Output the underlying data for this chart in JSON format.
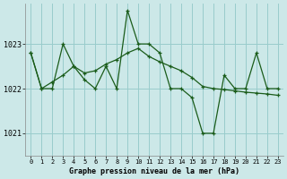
{
  "title": "Graphe pression niveau de la mer (hPa)",
  "background_color": "#cce8e8",
  "grid_color": "#99cccc",
  "line_color": "#1a5c1a",
  "xlim": [
    -0.5,
    23.5
  ],
  "ylim": [
    1020.5,
    1023.9
  ],
  "yticks": [
    1021,
    1022,
    1023
  ],
  "xticks": [
    0,
    1,
    2,
    3,
    4,
    5,
    6,
    7,
    8,
    9,
    10,
    11,
    12,
    13,
    14,
    15,
    16,
    17,
    18,
    19,
    20,
    21,
    22,
    23
  ],
  "series1_x": [
    0,
    1,
    2,
    3,
    4,
    5,
    6,
    7,
    8,
    9,
    10,
    11,
    12,
    13,
    14,
    15,
    16,
    17,
    18,
    19,
    20,
    21,
    22,
    23
  ],
  "series1_y": [
    1022.8,
    1022.0,
    1022.0,
    1023.0,
    1022.5,
    1022.2,
    1022.0,
    1022.5,
    1022.0,
    1023.75,
    1023.0,
    1023.0,
    1022.8,
    1022.0,
    1022.0,
    1021.8,
    1021.0,
    1021.0,
    1022.3,
    1022.0,
    1022.0,
    1022.8,
    1022.0,
    1022.0
  ],
  "series2_x": [
    0,
    1,
    2,
    3,
    4,
    5,
    6,
    7,
    8,
    9,
    10,
    11,
    12,
    13,
    14,
    15,
    16,
    17,
    18,
    19,
    20,
    21,
    22,
    23
  ],
  "series2_y": [
    1022.8,
    1022.0,
    1022.15,
    1022.3,
    1022.5,
    1022.35,
    1022.4,
    1022.55,
    1022.65,
    1022.8,
    1022.9,
    1022.72,
    1022.6,
    1022.5,
    1022.4,
    1022.25,
    1022.05,
    1022.0,
    1021.98,
    1021.95,
    1021.92,
    1021.9,
    1021.88,
    1021.85
  ]
}
